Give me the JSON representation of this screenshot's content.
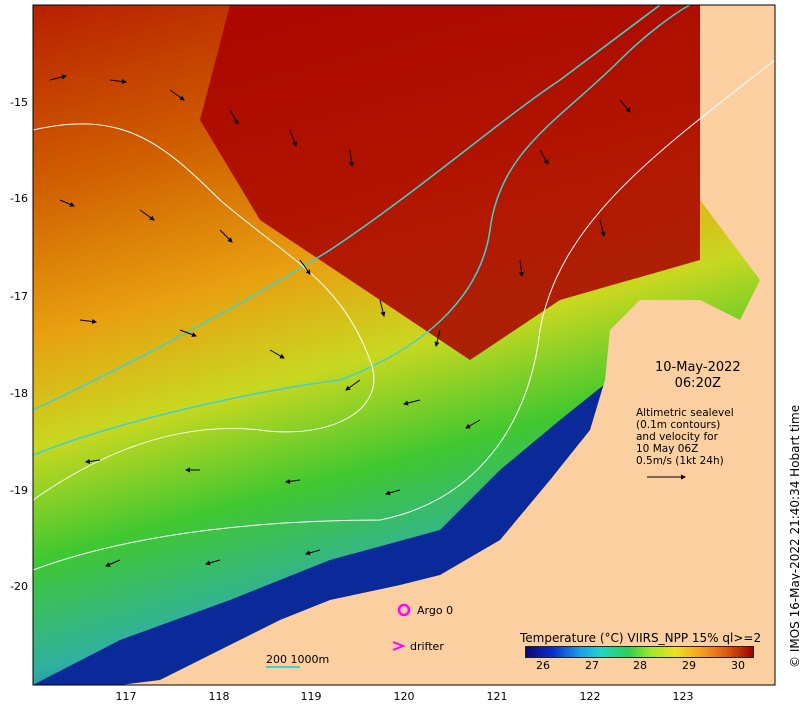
{
  "map": {
    "date": "10-May-2022",
    "time": "06:20Z",
    "note_lines": [
      "Altimetric sealevel",
      "(0.1m contours)",
      "and velocity for",
      "10 May 06Z",
      "0.5m/s (1kt 24h)"
    ],
    "copyright": "© IMOS 16-May-2022 21:40:34 Hobart time",
    "colorbar_title": "Temperature (°C) VIIRS_NPP 15% ql>=2",
    "colorbar_ticks": [
      "26",
      "27",
      "28",
      "29",
      "30"
    ],
    "argo_label": "Argo 0",
    "drifter_label": "drifter",
    "scale_label": "200   1000m",
    "x_ticks": [
      "117",
      "118",
      "119",
      "120",
      "121",
      "122",
      "123"
    ],
    "y_ticks": [
      "-15",
      "-16",
      "-17",
      "-18",
      "-19",
      "-20"
    ],
    "colors": {
      "land": "#fccfa0",
      "warm": "#a80000",
      "mid": "#e0a000",
      "cool": "#30c030",
      "cold": "#0a1a8a",
      "isobath": "#40d0d0",
      "marker": "#ff00ff"
    }
  }
}
